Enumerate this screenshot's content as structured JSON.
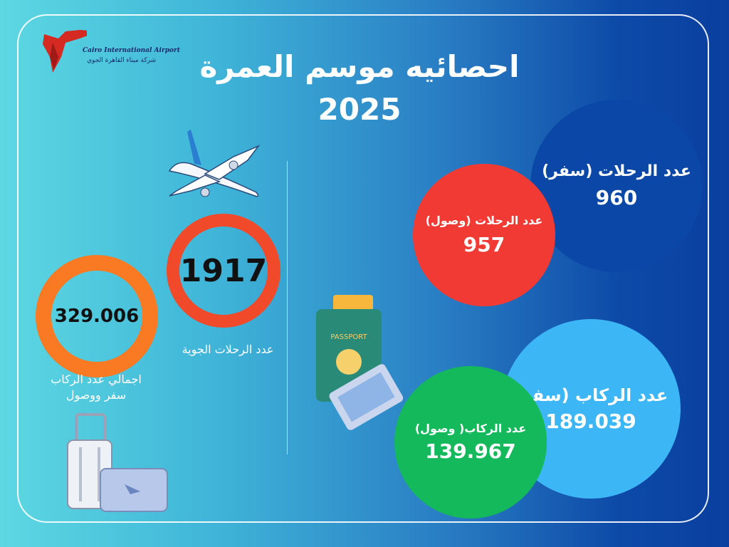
{
  "logo": {
    "name_en": "Cairo International Airport",
    "name_ar": "شركة ميناء القاهرة الجوي"
  },
  "title": "احصائيه موسم العمرة 2025",
  "total_flights": {
    "value": "1917",
    "label": "عدد الرحلات الجوية",
    "color": "#f04a2a"
  },
  "total_passengers": {
    "value": "329.006",
    "label_line1": "اجمالي عدد الركاب",
    "label_line2": "سفر ووصول",
    "color": "#f97a22"
  },
  "departure_flights": {
    "label": "عدد الرحلات (سفر)",
    "value": "960",
    "color": "#0b47a6"
  },
  "arrival_flights": {
    "label": "عدد الرحلات (وصول)",
    "value": "957",
    "color": "#f23a35"
  },
  "departure_passengers": {
    "label": "عدد الركاب (سفر)",
    "value": "189.039",
    "color": "#3db6f6"
  },
  "arrival_passengers": {
    "label": "عدد الركاب( وصول)",
    "value": "139.967",
    "color": "#14b95b"
  },
  "passport_text": "PASSPORT"
}
